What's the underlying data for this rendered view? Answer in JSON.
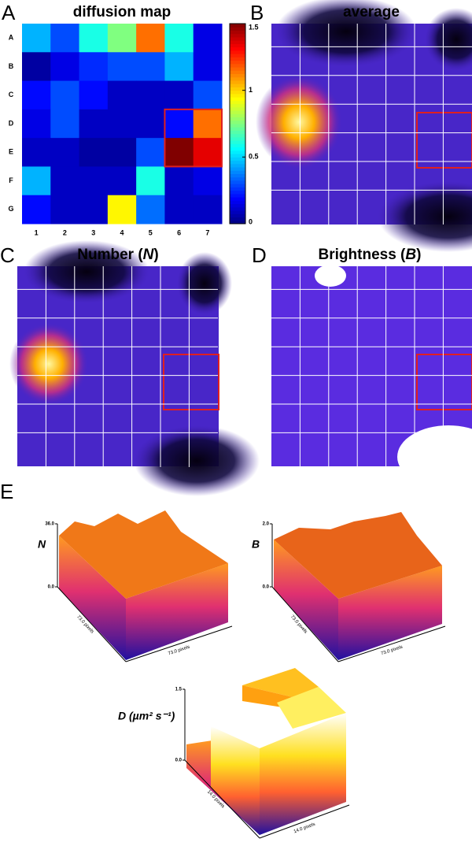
{
  "chart_data": {
    "type": "heatmap",
    "panel_label": "A",
    "title": "diffusion map",
    "rows": [
      "A",
      "B",
      "C",
      "D",
      "E",
      "F",
      "G"
    ],
    "columns": [
      "1",
      "2",
      "3",
      "4",
      "5",
      "6",
      "7"
    ],
    "values": [
      [
        0.45,
        0.3,
        0.6,
        0.75,
        1.15,
        0.6,
        0.15
      ],
      [
        0.05,
        0.15,
        0.25,
        0.3,
        0.3,
        0.45,
        0.15
      ],
      [
        0.2,
        0.3,
        0.2,
        0.1,
        0.1,
        0.1,
        0.3
      ],
      [
        0.15,
        0.3,
        0.1,
        0.1,
        0.1,
        0.2,
        1.15
      ],
      [
        0.1,
        0.1,
        0.05,
        0.05,
        0.3,
        1.5,
        1.35
      ],
      [
        0.45,
        0.1,
        0.1,
        0.1,
        0.6,
        0.1,
        0.15
      ],
      [
        0.2,
        0.1,
        0.1,
        0.95,
        0.35,
        0.1,
        0.1
      ]
    ],
    "colorbar": {
      "lim": [
        0,
        1.5
      ],
      "ticks": [
        0,
        0.5,
        1,
        1.5
      ]
    }
  },
  "images": [
    {
      "panel_label": "B",
      "title": [
        "average"
      ]
    },
    {
      "panel_label": "C",
      "title": [
        "Number (",
        "N",
        ")"
      ]
    },
    {
      "panel_label": "D",
      "title": [
        "Brightness (",
        "B",
        ")"
      ]
    }
  ],
  "surfaces": {
    "panel_label": "E",
    "plots": [
      {
        "axis_label": "N",
        "zlim": [
          0,
          36
        ],
        "zticks": [
          {
            "value": 0,
            "label": "0.0"
          },
          {
            "value": 36,
            "label": "36.0"
          }
        ],
        "y_label": "73.0 pixels",
        "x_label": "73.0 pixels"
      },
      {
        "axis_label": "B",
        "zlim": [
          0,
          2
        ],
        "zticks": [
          {
            "value": 0,
            "label": "0.0"
          },
          {
            "value": 2,
            "label": "2.0"
          }
        ],
        "y_label": "73.0 pixels",
        "x_label": "73.0 pixels"
      },
      {
        "axis_label": "D (µm² s⁻¹)",
        "zlim": [
          0,
          1.5
        ],
        "zticks": [
          {
            "value": 0,
            "label": "0.0"
          },
          {
            "value": 1.5,
            "label": "1.5"
          }
        ],
        "y_label": "14.0 pixels",
        "x_label": "14.0 pixels"
      }
    ]
  }
}
